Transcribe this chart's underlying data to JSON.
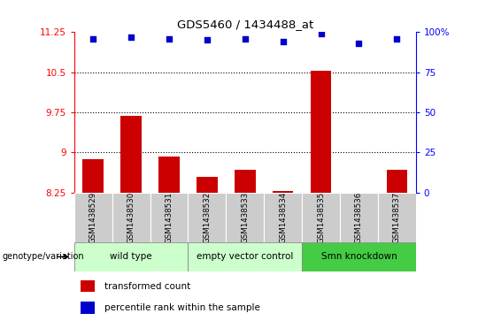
{
  "title": "GDS5460 / 1434488_at",
  "samples": [
    "GSM1438529",
    "GSM1438530",
    "GSM1438531",
    "GSM1438532",
    "GSM1438533",
    "GSM1438534",
    "GSM1438535",
    "GSM1438536",
    "GSM1438537"
  ],
  "bar_values": [
    8.87,
    9.68,
    8.93,
    8.55,
    8.67,
    8.28,
    10.53,
    8.22,
    8.67
  ],
  "dot_values": [
    96,
    97,
    96,
    95,
    96,
    94,
    99,
    93,
    96
  ],
  "bar_color": "#cc0000",
  "dot_color": "#0000cc",
  "ylim_left": [
    8.25,
    11.25
  ],
  "ylim_right": [
    0,
    100
  ],
  "yticks_left": [
    8.25,
    9.0,
    9.75,
    10.5,
    11.25
  ],
  "ytick_labels_left": [
    "8.25",
    "9",
    "9.75",
    "10.5",
    "11.25"
  ],
  "yticks_right": [
    0,
    25,
    50,
    75,
    100
  ],
  "ytick_labels_right": [
    "0",
    "25",
    "50",
    "75",
    "100%"
  ],
  "hlines": [
    9.0,
    9.75,
    10.5
  ],
  "groups": [
    {
      "label": "wild type",
      "indices": [
        0,
        1,
        2
      ],
      "color": "#ccffcc"
    },
    {
      "label": "empty vector control",
      "indices": [
        3,
        4,
        5
      ],
      "color": "#ccffcc"
    },
    {
      "label": "Smn knockdown",
      "indices": [
        6,
        7,
        8
      ],
      "color": "#44cc44"
    }
  ],
  "genotype_label": "genotype/variation",
  "legend_bar_label": "transformed count",
  "legend_dot_label": "percentile rank within the sample",
  "bar_width": 0.55,
  "sample_bg": "#cccccc",
  "plot_bg": "#ffffff"
}
